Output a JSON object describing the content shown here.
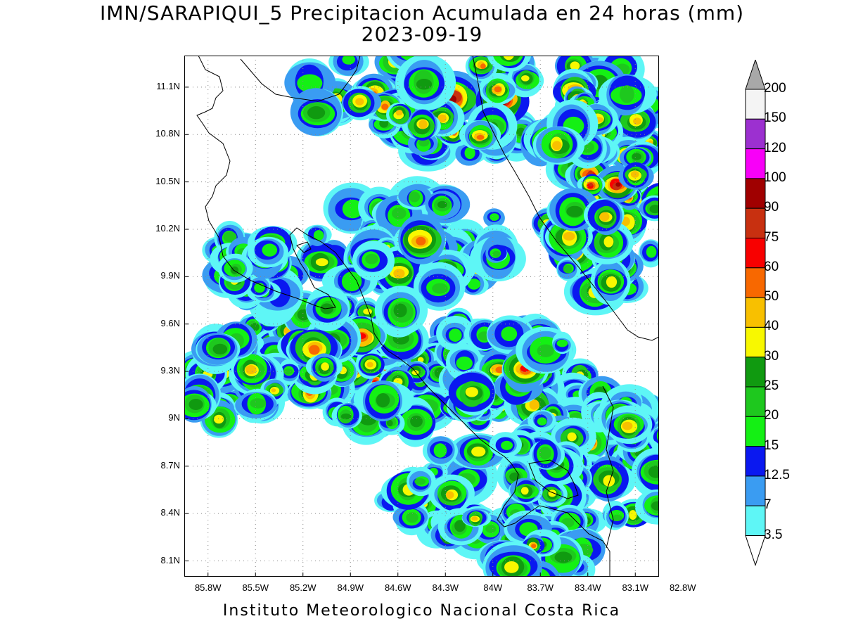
{
  "header": {
    "title": "IMN/SARAPIQUI_5 Precipitacion Acumulada en 24 horas (mm)",
    "date": "2023-09-19"
  },
  "map": {
    "lat_range": [
      8.0,
      11.3
    ],
    "lon_range": [
      -85.95,
      -82.95
    ],
    "lat_ticks": [
      {
        "value": 11.1,
        "label": "11.1N"
      },
      {
        "value": 10.8,
        "label": "10.8N"
      },
      {
        "value": 10.5,
        "label": "10.5N"
      },
      {
        "value": 10.2,
        "label": "10.2N"
      },
      {
        "value": 9.9,
        "label": "9.9N"
      },
      {
        "value": 9.6,
        "label": "9.6N"
      },
      {
        "value": 9.3,
        "label": "9.3N"
      },
      {
        "value": 9.0,
        "label": "9N"
      },
      {
        "value": 8.7,
        "label": "8.7N"
      },
      {
        "value": 8.4,
        "label": "8.4N"
      },
      {
        "value": 8.1,
        "label": "8.1N"
      }
    ],
    "lon_ticks": [
      {
        "value": -85.8,
        "label": "85.8W"
      },
      {
        "value": -85.5,
        "label": "85.5W"
      },
      {
        "value": -85.2,
        "label": "85.2W"
      },
      {
        "value": -84.9,
        "label": "84.9W"
      },
      {
        "value": -84.6,
        "label": "84.6W"
      },
      {
        "value": -84.3,
        "label": "84.3W"
      },
      {
        "value": -84.0,
        "label": "84W"
      },
      {
        "value": -83.7,
        "label": "83.7W"
      },
      {
        "value": -83.4,
        "label": "83.4W"
      },
      {
        "value": -83.1,
        "label": "83.1W"
      },
      {
        "value": -82.8,
        "label": "82.8W"
      }
    ]
  },
  "colorbar": {
    "levels": [
      {
        "label": "3.5",
        "color": "#5ef6f6"
      },
      {
        "label": "7",
        "color": "#3a9cf2"
      },
      {
        "label": "12.5",
        "color": "#0a18f0"
      },
      {
        "label": "15",
        "color": "#14f014"
      },
      {
        "label": "20",
        "color": "#1ec81e"
      },
      {
        "label": "25",
        "color": "#109a10"
      },
      {
        "label": "30",
        "color": "#f8f800"
      },
      {
        "label": "40",
        "color": "#f8c000"
      },
      {
        "label": "50",
        "color": "#f86800"
      },
      {
        "label": "60",
        "color": "#f80000"
      },
      {
        "label": "75",
        "color": "#c83010"
      },
      {
        "label": "90",
        "color": "#a00000"
      },
      {
        "label": "100",
        "color": "#f800f8"
      },
      {
        "label": "120",
        "color": "#9c30d0"
      },
      {
        "label": "150",
        "color": "#f4f4f4"
      },
      {
        "label": "200",
        "color": "#a8a8a8"
      }
    ]
  },
  "footer": {
    "text": "Instituto Meteorologico Nacional Costa Rica"
  }
}
